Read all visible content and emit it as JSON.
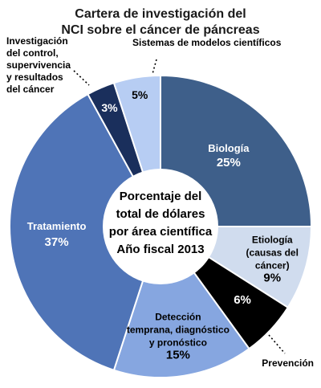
{
  "chart_data": {
    "type": "pie",
    "title_lines": [
      "Cartera de investigación del",
      "NCI sobre el cáncer de páncreas"
    ],
    "center_lines": [
      "Porcentaje del",
      "total de dólares",
      "por área científica",
      "Año fiscal 2013"
    ],
    "slices": [
      {
        "id": "biologia",
        "label_lines": [
          "Biología"
        ],
        "pct_text": "25%",
        "value": 25,
        "color": "#3e5f8a",
        "text_color": "#ffffff"
      },
      {
        "id": "etiologia",
        "label_lines": [
          "Etiología",
          "(causas del",
          "cáncer)"
        ],
        "pct_text": "9%",
        "value": 9,
        "color": "#d0dcee",
        "text_color": "#000000"
      },
      {
        "id": "prevencion",
        "label_lines": [
          "Prevención"
        ],
        "pct_text": "6%",
        "value": 6,
        "color": "#000000",
        "text_color": "#ffffff"
      },
      {
        "id": "deteccion",
        "label_lines": [
          "Detección",
          "temprana, diagnóstico",
          "y pronóstico"
        ],
        "pct_text": "15%",
        "value": 15,
        "color": "#86a6e0",
        "text_color": "#000000"
      },
      {
        "id": "tratamiento",
        "label_lines": [
          "Tratamiento"
        ],
        "pct_text": "37%",
        "value": 37,
        "color": "#4f74b7",
        "text_color": "#ffffff"
      },
      {
        "id": "control",
        "label_lines": [
          "Investigación",
          "del control,",
          "supervivencia",
          "y resultados",
          "del cáncer"
        ],
        "pct_text": "3%",
        "value": 3,
        "color": "#1a2f5c",
        "text_color": "#ffffff"
      },
      {
        "id": "sistemas",
        "label_lines": [
          "Sistemas de modelos científicos"
        ],
        "pct_text": "5%",
        "value": 5,
        "color": "#b7cdf3",
        "text_color": "#000000"
      }
    ]
  }
}
